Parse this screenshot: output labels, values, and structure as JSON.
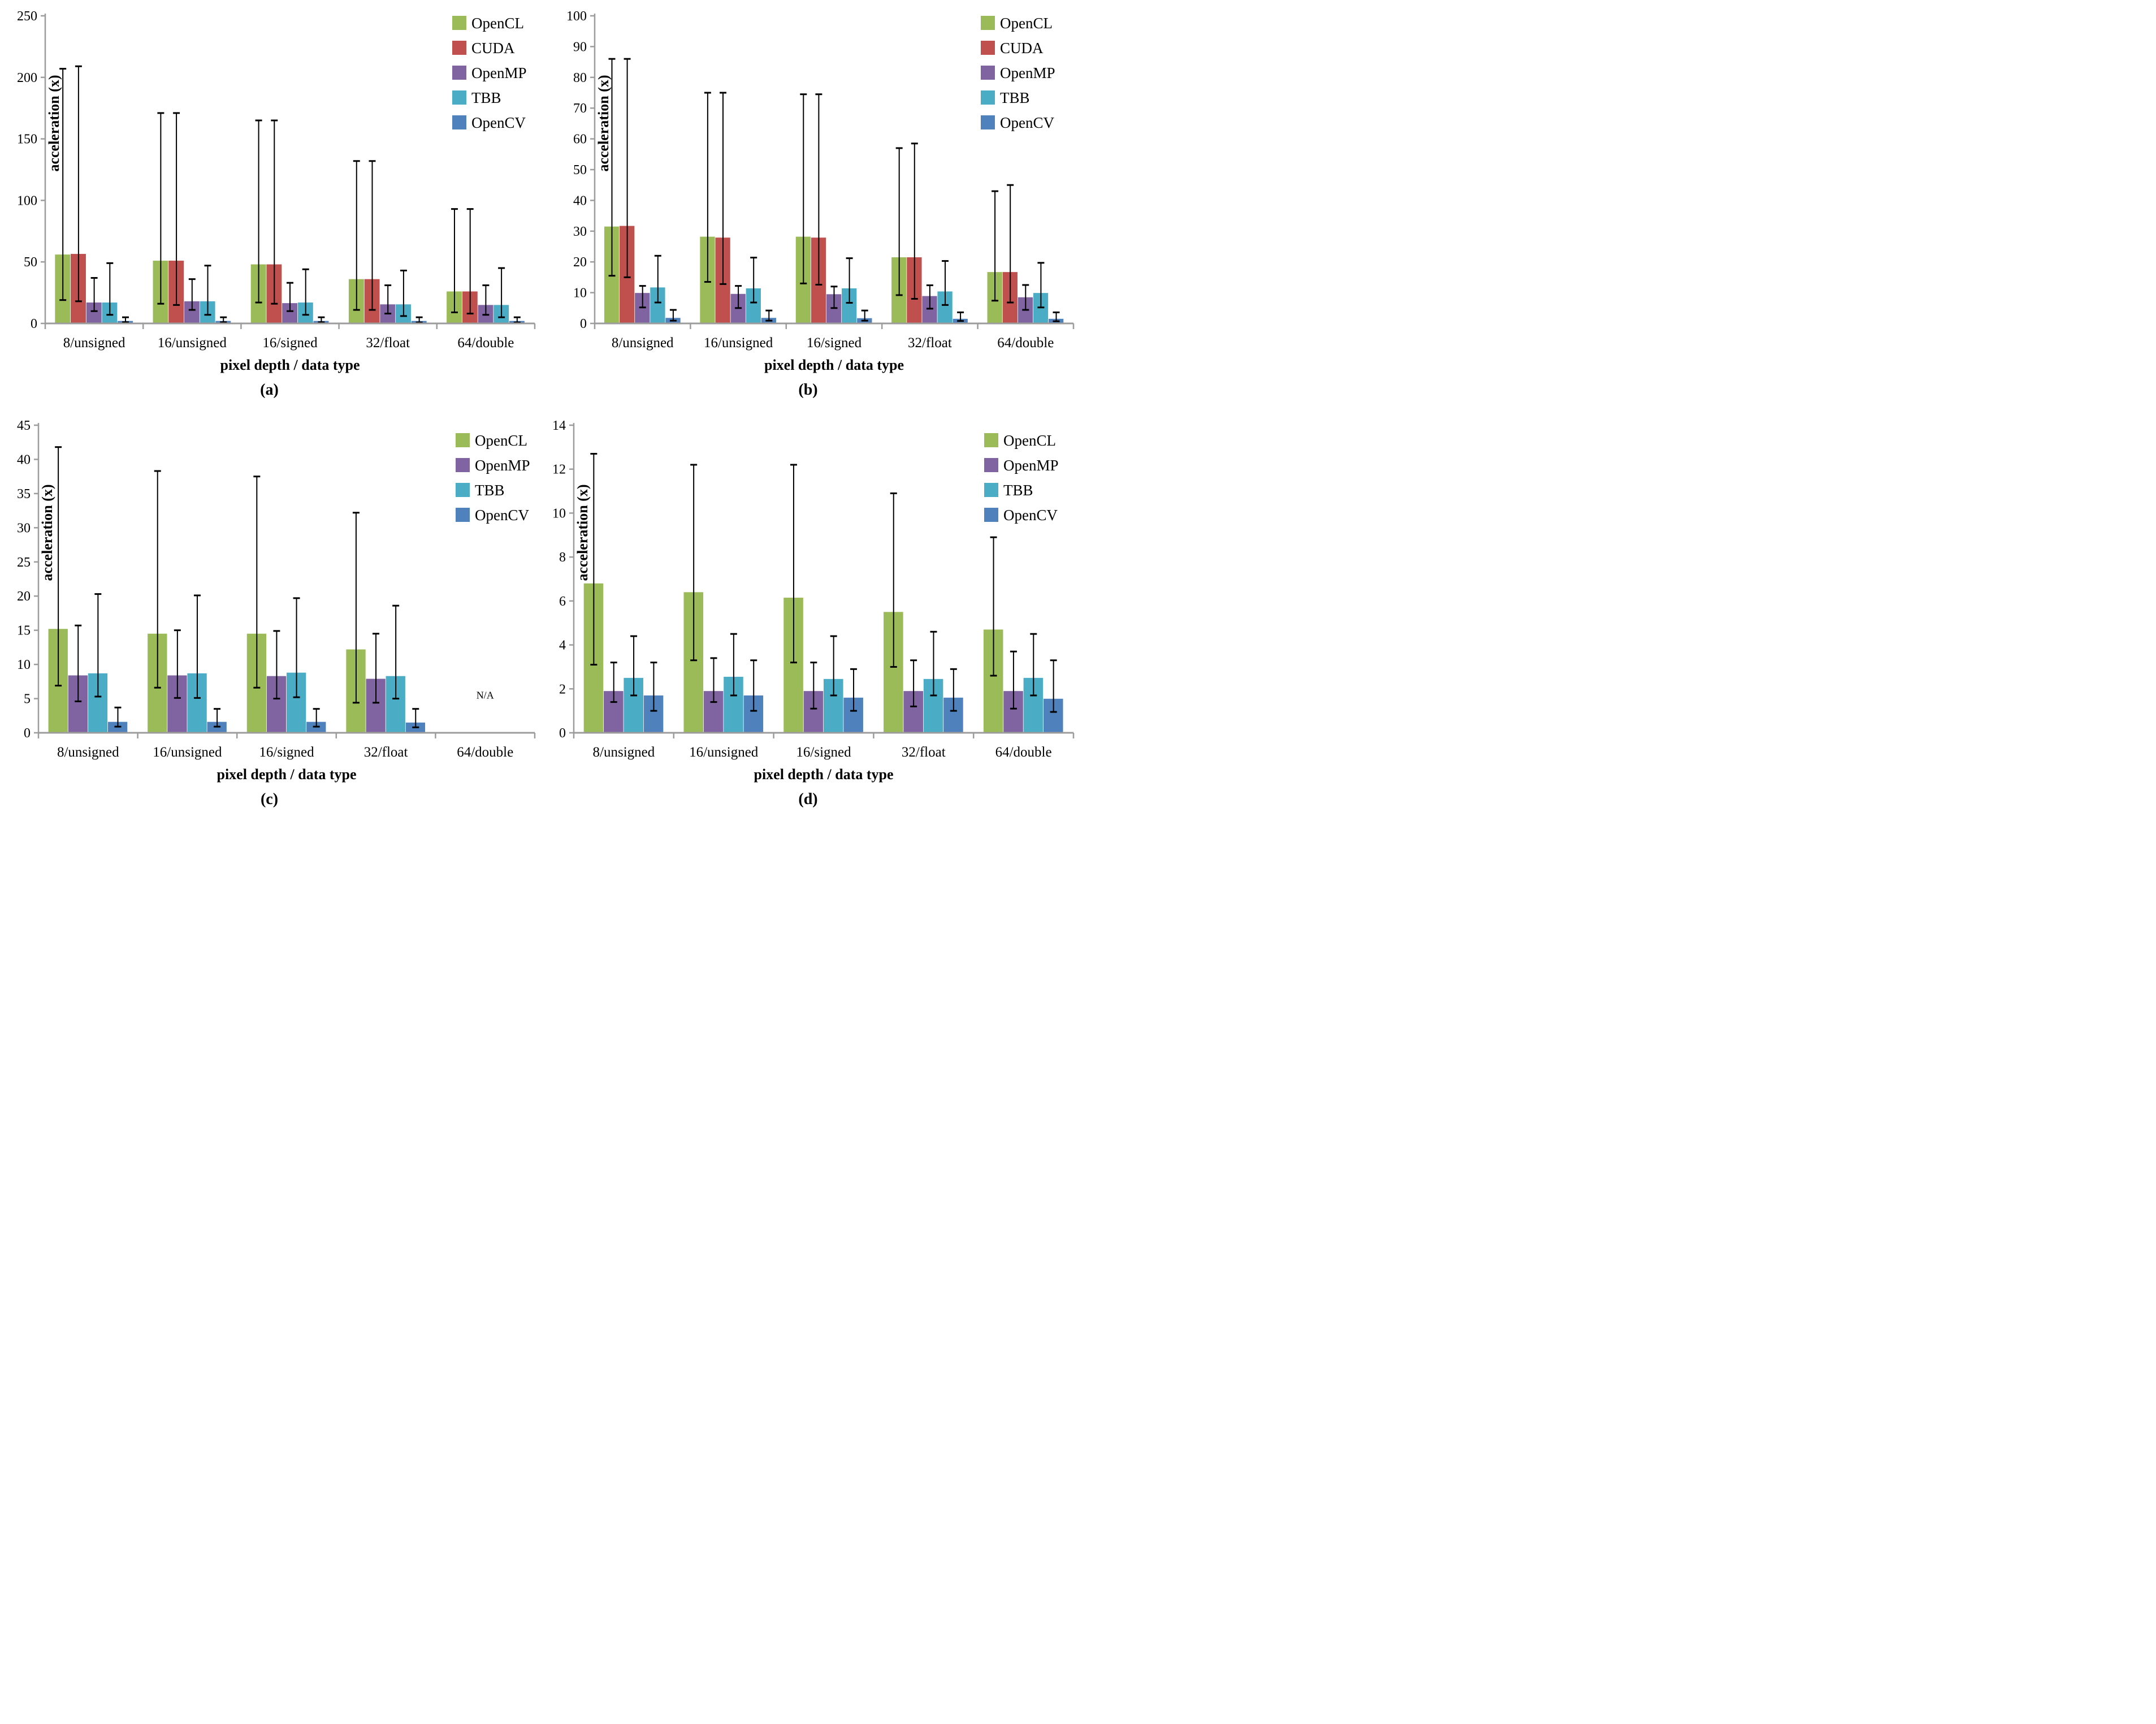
{
  "page": {
    "background": "#ffffff"
  },
  "colors": {
    "OpenCL": "#9BBB59",
    "CUDA": "#C0504D",
    "OpenMP": "#8064A2",
    "TBB": "#4BACC6",
    "OpenCV": "#4F81BD",
    "axis_line": "#9C9C9C",
    "error_bar": "#000000",
    "text": "#000000"
  },
  "chart_data": [
    {
      "id": "a",
      "type": "bar",
      "caption": "(a)",
      "ylabel": "acceleration (x)",
      "xlabel": "pixel depth / data type",
      "ylim": [
        0,
        250
      ],
      "ytick_step": 50,
      "grid": false,
      "legend_position": "top-right",
      "error_bars": "min-max",
      "categories": [
        "8/unsigned",
        "16/unsigned",
        "16/signed",
        "32/float",
        "64/double"
      ],
      "series": [
        {
          "name": "OpenCL",
          "color": "#9BBB59",
          "values": [
            56,
            51,
            48,
            36,
            26
          ],
          "err_low": [
            19,
            16,
            17,
            11,
            9
          ],
          "err_high": [
            207,
            171,
            165,
            132,
            93
          ]
        },
        {
          "name": "CUDA",
          "color": "#C0504D",
          "values": [
            56.5,
            51,
            48,
            36,
            26
          ],
          "err_low": [
            18,
            15,
            16,
            11,
            8
          ],
          "err_high": [
            209,
            171,
            165,
            132,
            93
          ]
        },
        {
          "name": "OpenMP",
          "color": "#8064A2",
          "values": [
            17,
            18,
            16.5,
            15.5,
            15
          ],
          "err_low": [
            10,
            11,
            10,
            8,
            7
          ],
          "err_high": [
            37,
            36,
            33,
            31,
            31
          ]
        },
        {
          "name": "TBB",
          "color": "#4BACC6",
          "values": [
            17,
            18,
            17,
            15.5,
            15
          ],
          "err_low": [
            7,
            7,
            7,
            6,
            5
          ],
          "err_high": [
            49,
            47,
            44,
            43,
            45
          ]
        },
        {
          "name": "OpenCV",
          "color": "#4F81BD",
          "values": [
            2,
            2,
            2,
            2,
            2
          ],
          "err_low": [
            1,
            1,
            1,
            0.8,
            0.8
          ],
          "err_high": [
            5,
            5,
            5,
            5,
            5
          ]
        }
      ],
      "annotations": []
    },
    {
      "id": "b",
      "type": "bar",
      "caption": "(b)",
      "ylabel": "acceleration (x)",
      "xlabel": "pixel depth / data type",
      "ylim": [
        0,
        100
      ],
      "ytick_step": 10,
      "grid": false,
      "legend_position": "top-right",
      "error_bars": "min-max",
      "categories": [
        "8/unsigned",
        "16/unsigned",
        "16/signed",
        "32/float",
        "64/double"
      ],
      "series": [
        {
          "name": "OpenCL",
          "color": "#9BBB59",
          "values": [
            31.5,
            28.2,
            28.2,
            21.5,
            16.7
          ],
          "err_low": [
            15.5,
            13.5,
            13,
            9.2,
            7.4
          ],
          "err_high": [
            86,
            75,
            74.5,
            57,
            43
          ]
        },
        {
          "name": "CUDA",
          "color": "#C0504D",
          "values": [
            31.7,
            27.9,
            27.9,
            21.5,
            16.7
          ],
          "err_low": [
            15,
            12.8,
            12.6,
            8,
            6.8
          ],
          "err_high": [
            86,
            75,
            74.5,
            58.5,
            45
          ]
        },
        {
          "name": "OpenMP",
          "color": "#8064A2",
          "values": [
            9.9,
            9.6,
            9.5,
            8.9,
            8.5
          ],
          "err_low": [
            5.2,
            5,
            5,
            4.8,
            4.4
          ],
          "err_high": [
            12.2,
            12.2,
            12,
            12.4,
            12.5
          ]
        },
        {
          "name": "TBB",
          "color": "#4BACC6",
          "values": [
            11.7,
            11.4,
            11.4,
            10.4,
            9.9
          ],
          "err_low": [
            6.8,
            6.8,
            6.7,
            6,
            5.2
          ],
          "err_high": [
            22,
            21.4,
            21.2,
            20.3,
            19.7
          ]
        },
        {
          "name": "OpenCV",
          "color": "#4F81BD",
          "values": [
            1.8,
            1.8,
            1.7,
            1.5,
            1.5
          ],
          "err_low": [
            0.9,
            0.9,
            0.9,
            0.8,
            0.7
          ],
          "err_high": [
            4.4,
            4.2,
            4.2,
            3.6,
            3.6
          ]
        }
      ],
      "annotations": []
    },
    {
      "id": "c",
      "type": "bar",
      "caption": "(c)",
      "ylabel": "acceleration (x)",
      "xlabel": "pixel depth / data type",
      "ylim": [
        0,
        45
      ],
      "ytick_step": 5,
      "grid": false,
      "legend_position": "top-right",
      "error_bars": "min-max",
      "categories": [
        "8/unsigned",
        "16/unsigned",
        "16/signed",
        "32/float",
        "64/double"
      ],
      "series": [
        {
          "name": "OpenCL",
          "color": "#9BBB59",
          "values": [
            15.2,
            14.5,
            14.5,
            12.2,
            null
          ],
          "err_low": [
            6.9,
            6.6,
            6.6,
            4.4,
            null
          ],
          "err_high": [
            41.8,
            38.3,
            37.5,
            32.2,
            null
          ]
        },
        {
          "name": "OpenMP",
          "color": "#8064A2",
          "values": [
            8.4,
            8.4,
            8.3,
            7.9,
            null
          ],
          "err_low": [
            4.6,
            5.1,
            5,
            4.4,
            null
          ],
          "err_high": [
            15.7,
            15,
            14.9,
            14.5,
            null
          ]
        },
        {
          "name": "TBB",
          "color": "#4BACC6",
          "values": [
            8.7,
            8.7,
            8.8,
            8.3,
            null
          ],
          "err_low": [
            5.3,
            5.1,
            5.2,
            5,
            null
          ],
          "err_high": [
            20.3,
            20.1,
            19.7,
            18.6,
            null
          ]
        },
        {
          "name": "OpenCV",
          "color": "#4F81BD",
          "values": [
            1.6,
            1.6,
            1.6,
            1.5,
            null
          ],
          "err_low": [
            0.9,
            0.9,
            0.9,
            0.8,
            null
          ],
          "err_high": [
            3.7,
            3.5,
            3.5,
            3.5,
            null
          ]
        }
      ],
      "annotations": [
        {
          "text": "N/A",
          "category_index": 4,
          "y": 5
        }
      ]
    },
    {
      "id": "d",
      "type": "bar",
      "caption": "(d)",
      "ylabel": "acceleration (x)",
      "xlabel": "pixel depth / data type",
      "ylim": [
        0,
        14
      ],
      "ytick_step": 2,
      "grid": false,
      "legend_position": "top-right",
      "error_bars": "min-max",
      "categories": [
        "8/unsigned",
        "16/unsigned",
        "16/signed",
        "32/float",
        "64/double"
      ],
      "series": [
        {
          "name": "OpenCL",
          "color": "#9BBB59",
          "values": [
            6.8,
            6.4,
            6.15,
            5.5,
            4.7
          ],
          "err_low": [
            3.1,
            3.3,
            3.2,
            3.0,
            2.6
          ],
          "err_high": [
            12.7,
            12.2,
            12.2,
            10.9,
            8.9
          ]
        },
        {
          "name": "OpenMP",
          "color": "#8064A2",
          "values": [
            1.9,
            1.9,
            1.9,
            1.9,
            1.9
          ],
          "err_low": [
            1.4,
            1.4,
            1.1,
            1.2,
            1.1
          ],
          "err_high": [
            3.2,
            3.4,
            3.2,
            3.3,
            3.7
          ]
        },
        {
          "name": "TBB",
          "color": "#4BACC6",
          "values": [
            2.5,
            2.55,
            2.45,
            2.45,
            2.5
          ],
          "err_low": [
            1.7,
            1.7,
            1.7,
            1.7,
            1.7
          ],
          "err_high": [
            4.4,
            4.5,
            4.4,
            4.6,
            4.5
          ]
        },
        {
          "name": "OpenCV",
          "color": "#4F81BD",
          "values": [
            1.7,
            1.7,
            1.6,
            1.6,
            1.55
          ],
          "err_low": [
            1.0,
            1.0,
            1.0,
            1.0,
            0.95
          ],
          "err_high": [
            3.2,
            3.3,
            2.9,
            2.9,
            3.3
          ]
        }
      ],
      "annotations": []
    }
  ]
}
